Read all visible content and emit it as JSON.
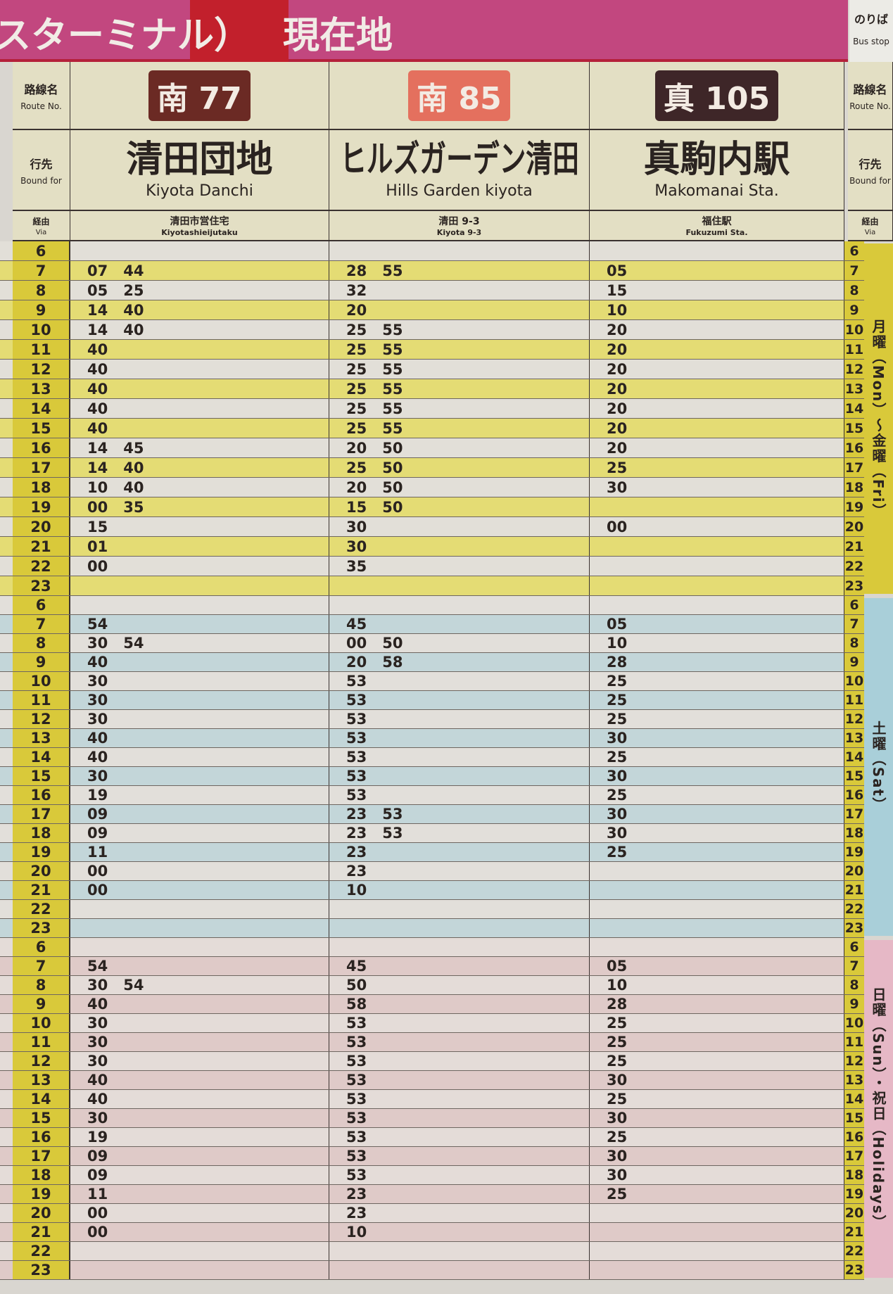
{
  "header": {
    "left_text": "スターミナル）",
    "current_location": "現在地",
    "bus_stop_jp": "のりば",
    "bus_stop_en": "Bus stop"
  },
  "labels": {
    "route_jp": "路線名",
    "route_en": "Route No.",
    "bound_jp": "行先",
    "bound_en": "Bound for",
    "via_jp": "経由",
    "via_en": "Via"
  },
  "routes": [
    {
      "prefix": "南",
      "number": "77",
      "color": "#6b2a24",
      "dest_jp": "清田団地",
      "dest_en": "Kiyota Danchi",
      "via_jp": "清田市営住宅",
      "via_en": "Kiyotashieijutaku"
    },
    {
      "prefix": "南",
      "number": "85",
      "color": "#e4705e",
      "dest_jp": "ヒルズガーデン清田",
      "dest_en": "Hills Garden kiyota",
      "via_jp": "清田 9-3",
      "via_en": "Kiyota 9-3"
    },
    {
      "prefix": "真",
      "number": "105",
      "color": "#3e2628",
      "dest_jp": "真駒内駅",
      "dest_en": "Makomanai Sta.",
      "via_jp": "福住駅",
      "via_en": "Fukuzumi Sta."
    }
  ],
  "sections": [
    {
      "label": "月曜（Mon）～金曜（Fri）",
      "color": "#d9c93a",
      "stripe": "#e4dc74",
      "plain": "#e2dfd8",
      "rows": [
        {
          "hour": "6",
          "times": [
            [],
            [],
            []
          ]
        },
        {
          "hour": "7",
          "times": [
            [
              "07",
              "44"
            ],
            [
              "28",
              "55"
            ],
            [
              "05"
            ]
          ]
        },
        {
          "hour": "8",
          "times": [
            [
              "05",
              "25"
            ],
            [
              "32"
            ],
            [
              "15"
            ]
          ]
        },
        {
          "hour": "9",
          "times": [
            [
              "14",
              "40"
            ],
            [
              "20"
            ],
            [
              "10"
            ]
          ]
        },
        {
          "hour": "10",
          "times": [
            [
              "14",
              "40"
            ],
            [
              "25",
              "55"
            ],
            [
              "20"
            ]
          ]
        },
        {
          "hour": "11",
          "times": [
            [
              "40"
            ],
            [
              "25",
              "55"
            ],
            [
              "20"
            ]
          ]
        },
        {
          "hour": "12",
          "times": [
            [
              "40"
            ],
            [
              "25",
              "55"
            ],
            [
              "20"
            ]
          ]
        },
        {
          "hour": "13",
          "times": [
            [
              "40"
            ],
            [
              "25",
              "55"
            ],
            [
              "20"
            ]
          ]
        },
        {
          "hour": "14",
          "times": [
            [
              "40"
            ],
            [
              "25",
              "55"
            ],
            [
              "20"
            ]
          ]
        },
        {
          "hour": "15",
          "times": [
            [
              "40"
            ],
            [
              "25",
              "55"
            ],
            [
              "20"
            ]
          ]
        },
        {
          "hour": "16",
          "times": [
            [
              "14",
              "45"
            ],
            [
              "20",
              "50"
            ],
            [
              "20"
            ]
          ]
        },
        {
          "hour": "17",
          "times": [
            [
              "14",
              "40"
            ],
            [
              "25",
              "50"
            ],
            [
              "25"
            ]
          ]
        },
        {
          "hour": "18",
          "times": [
            [
              "10",
              "40"
            ],
            [
              "20",
              "50"
            ],
            [
              "30"
            ]
          ]
        },
        {
          "hour": "19",
          "times": [
            [
              "00",
              "35"
            ],
            [
              "15",
              "50"
            ],
            []
          ]
        },
        {
          "hour": "20",
          "times": [
            [
              "15"
            ],
            [
              "30"
            ],
            [
              "00"
            ]
          ]
        },
        {
          "hour": "21",
          "times": [
            [
              "01"
            ],
            [
              "30"
            ],
            []
          ]
        },
        {
          "hour": "22",
          "times": [
            [
              "00"
            ],
            [
              "35"
            ],
            []
          ]
        },
        {
          "hour": "23",
          "times": [
            [],
            [],
            []
          ]
        }
      ]
    },
    {
      "label": "土曜（Sat）",
      "color": "#a9cfd9",
      "stripe": "#c3d6d9",
      "plain": "#e2dfda",
      "rows": [
        {
          "hour": "6",
          "times": [
            [],
            [],
            []
          ]
        },
        {
          "hour": "7",
          "times": [
            [
              "54"
            ],
            [
              "45"
            ],
            [
              "05"
            ]
          ]
        },
        {
          "hour": "8",
          "times": [
            [
              "30",
              "54"
            ],
            [
              "00",
              "50"
            ],
            [
              "10"
            ]
          ]
        },
        {
          "hour": "9",
          "times": [
            [
              "40"
            ],
            [
              "20",
              "58"
            ],
            [
              "28"
            ]
          ]
        },
        {
          "hour": "10",
          "times": [
            [
              "30"
            ],
            [
              "53"
            ],
            [
              "25"
            ]
          ]
        },
        {
          "hour": "11",
          "times": [
            [
              "30"
            ],
            [
              "53"
            ],
            [
              "25"
            ]
          ]
        },
        {
          "hour": "12",
          "times": [
            [
              "30"
            ],
            [
              "53"
            ],
            [
              "25"
            ]
          ]
        },
        {
          "hour": "13",
          "times": [
            [
              "40"
            ],
            [
              "53"
            ],
            [
              "30"
            ]
          ]
        },
        {
          "hour": "14",
          "times": [
            [
              "40"
            ],
            [
              "53"
            ],
            [
              "25"
            ]
          ]
        },
        {
          "hour": "15",
          "times": [
            [
              "30"
            ],
            [
              "53"
            ],
            [
              "30"
            ]
          ]
        },
        {
          "hour": "16",
          "times": [
            [
              "19"
            ],
            [
              "53"
            ],
            [
              "25"
            ]
          ]
        },
        {
          "hour": "17",
          "times": [
            [
              "09"
            ],
            [
              "23",
              "53"
            ],
            [
              "30"
            ]
          ]
        },
        {
          "hour": "18",
          "times": [
            [
              "09"
            ],
            [
              "23",
              "53"
            ],
            [
              "30"
            ]
          ]
        },
        {
          "hour": "19",
          "times": [
            [
              "11"
            ],
            [
              "23"
            ],
            [
              "25"
            ]
          ]
        },
        {
          "hour": "20",
          "times": [
            [
              "00"
            ],
            [
              "23"
            ],
            []
          ]
        },
        {
          "hour": "21",
          "times": [
            [
              "00"
            ],
            [
              "10"
            ],
            []
          ]
        },
        {
          "hour": "22",
          "times": [
            [],
            [],
            []
          ]
        },
        {
          "hour": "23",
          "times": [
            [],
            [],
            []
          ]
        }
      ]
    },
    {
      "label": "日曜（Sun）・祝日（Holidays）",
      "color": "#e6b8c6",
      "stripe": "#dfcac8",
      "plain": "#e4dcd8",
      "rows": [
        {
          "hour": "6",
          "times": [
            [],
            [],
            []
          ]
        },
        {
          "hour": "7",
          "times": [
            [
              "54"
            ],
            [
              "45"
            ],
            [
              "05"
            ]
          ]
        },
        {
          "hour": "8",
          "times": [
            [
              "30",
              "54"
            ],
            [
              "50"
            ],
            [
              "10"
            ]
          ]
        },
        {
          "hour": "9",
          "times": [
            [
              "40"
            ],
            [
              "58"
            ],
            [
              "28"
            ]
          ]
        },
        {
          "hour": "10",
          "times": [
            [
              "30"
            ],
            [
              "53"
            ],
            [
              "25"
            ]
          ]
        },
        {
          "hour": "11",
          "times": [
            [
              "30"
            ],
            [
              "53"
            ],
            [
              "25"
            ]
          ]
        },
        {
          "hour": "12",
          "times": [
            [
              "30"
            ],
            [
              "53"
            ],
            [
              "25"
            ]
          ]
        },
        {
          "hour": "13",
          "times": [
            [
              "40"
            ],
            [
              "53"
            ],
            [
              "30"
            ]
          ]
        },
        {
          "hour": "14",
          "times": [
            [
              "40"
            ],
            [
              "53"
            ],
            [
              "25"
            ]
          ]
        },
        {
          "hour": "15",
          "times": [
            [
              "30"
            ],
            [
              "53"
            ],
            [
              "30"
            ]
          ]
        },
        {
          "hour": "16",
          "times": [
            [
              "19"
            ],
            [
              "53"
            ],
            [
              "25"
            ]
          ]
        },
        {
          "hour": "17",
          "times": [
            [
              "09"
            ],
            [
              "53"
            ],
            [
              "30"
            ]
          ]
        },
        {
          "hour": "18",
          "times": [
            [
              "09"
            ],
            [
              "53"
            ],
            [
              "30"
            ]
          ]
        },
        {
          "hour": "19",
          "times": [
            [
              "11"
            ],
            [
              "23"
            ],
            [
              "25"
            ]
          ]
        },
        {
          "hour": "20",
          "times": [
            [
              "00"
            ],
            [
              "23"
            ],
            []
          ]
        },
        {
          "hour": "21",
          "times": [
            [
              "00"
            ],
            [
              "10"
            ],
            []
          ]
        },
        {
          "hour": "22",
          "times": [
            [],
            [],
            []
          ]
        },
        {
          "hour": "23",
          "times": [
            [],
            [],
            []
          ]
        }
      ]
    }
  ]
}
